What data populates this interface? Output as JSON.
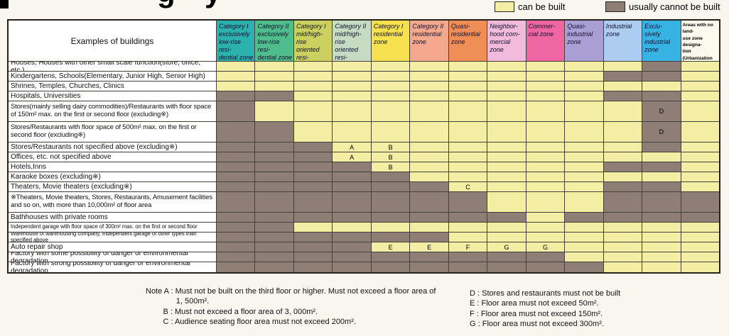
{
  "title_fragments": [
    "g",
    "y"
  ],
  "chart_data": {
    "type": "table",
    "title": "Land-use zone building restrictions matrix (title cropped in image)",
    "legend": [
      {
        "label": "can be built",
        "color": "#f3eea3"
      },
      {
        "label": "usually cannot be built",
        "color": "#8e7e75"
      }
    ],
    "corner_header": "Examples of buildings",
    "columns": [
      {
        "label": "Category I\nexclusively\nlow-rise resi-\ndential zone",
        "color": "#2bb2af"
      },
      {
        "label": "Category II\nexclusively\nlow-rise resi-\ndential zone",
        "color": "#50bd8c"
      },
      {
        "label": "Category I\nmid/high-rise\noriented resi-\ndential zone",
        "color": "#cbd05e"
      },
      {
        "label": "Category II\nmid/high-rise\noriented resi-\ndential zone",
        "color": "#c5dcc2"
      },
      {
        "label": "Category I\nresidential\nzone",
        "color": "#f8e14e"
      },
      {
        "label": "Category II\nresidential\nzone",
        "color": "#f4a98e"
      },
      {
        "label": "Quasi-\nresidential\nzone",
        "color": "#f08e57"
      },
      {
        "label": "Neighbor-\nhood com-\nmercial\nzone",
        "color": "#f2badb"
      },
      {
        "label": "Commer-\ncial zone",
        "color": "#ef66a2"
      },
      {
        "label": "Quasi-\nindustrial\nzone",
        "color": "#a99fd4"
      },
      {
        "label": "Industrial\nzone",
        "color": "#accdf0"
      },
      {
        "label": "Exclu-\nsively\nindustrial\nzone",
        "color": "#36b3e3"
      },
      {
        "label": "Areas with no land-\nuse zone designa-\ntion (Urbanization\nControl Areas are\nexcluded)",
        "color": "#fcf9ee"
      }
    ],
    "cell_legend_note": "blank = can be built, N = usually cannot be built, letters refer to notes A-G",
    "rows": [
      {
        "label": "Houses, Houses with other small scale function(store, office, etc.)",
        "cells": [
          "",
          "",
          "",
          "",
          "",
          "",
          "",
          "",
          "",
          "",
          "",
          "N",
          ""
        ]
      },
      {
        "label": "Kindergartens, Schools(Elementary, Junior High, Senior High)",
        "cells": [
          "",
          "",
          "",
          "",
          "",
          "",
          "",
          "",
          "",
          "",
          "N",
          "N",
          ""
        ]
      },
      {
        "label": "Shrines, Temples, Churches, Clinics",
        "cells": [
          "",
          "",
          "",
          "",
          "",
          "",
          "",
          "",
          "",
          "",
          "",
          "",
          ""
        ]
      },
      {
        "label": "Hospitals, Universities",
        "cells": [
          "N",
          "N",
          "",
          "",
          "",
          "",
          "",
          "",
          "",
          "",
          "N",
          "N",
          ""
        ]
      },
      {
        "label": "Stores(mainly selling dairy commodities)/Restaurants with floor space of 150m² max. on the first or second floor (excluding※)",
        "cells": [
          "N",
          "",
          "",
          "",
          "",
          "",
          "",
          "",
          "",
          "",
          "",
          "ND",
          ""
        ]
      },
      {
        "label": "Stores/Restaurants with floor space of 500m² max. on the first or second floor (excluding※)",
        "cells": [
          "N",
          "N",
          "",
          "",
          "",
          "",
          "",
          "",
          "",
          "",
          "",
          "ND",
          ""
        ]
      },
      {
        "label": "Stores/Restaurants not specified above (excluding※)",
        "cells": [
          "N",
          "N",
          "N",
          "A",
          "B",
          "",
          "",
          "",
          "",
          "",
          "",
          "N",
          ""
        ]
      },
      {
        "label": "Offices, etc. not specified above",
        "cells": [
          "N",
          "N",
          "N",
          "A",
          "B",
          "",
          "",
          "",
          "",
          "",
          "",
          "",
          ""
        ]
      },
      {
        "label": "Hotels,Inns",
        "cells": [
          "N",
          "N",
          "N",
          "N",
          "B",
          "",
          "",
          "",
          "",
          "",
          "N",
          "N",
          ""
        ]
      },
      {
        "label": "Karaoke boxes (excluding※)",
        "cells": [
          "N",
          "N",
          "N",
          "N",
          "N",
          "",
          "",
          "",
          "",
          "",
          "",
          "",
          ""
        ]
      },
      {
        "label": "Theaters, Movie theaters (excluding※)",
        "cells": [
          "N",
          "N",
          "N",
          "N",
          "N",
          "N",
          "C",
          "",
          "",
          "",
          "N",
          "N",
          ""
        ]
      },
      {
        "label": "※Theaters, Movie theaters, Stores, Restaurants, Amusement facilities and so on, with more than 10,000m² of floor area",
        "cells": [
          "N",
          "N",
          "N",
          "N",
          "N",
          "N",
          "N",
          "",
          "",
          "",
          "N",
          "N",
          "N"
        ]
      },
      {
        "label": "Bathhouses with private rooms",
        "cells": [
          "N",
          "N",
          "N",
          "N",
          "N",
          "N",
          "N",
          "N",
          "",
          "N",
          "N",
          "N",
          "N"
        ]
      },
      {
        "label": "Independent garage with floor space of 300m² max. on the first or second floor",
        "cells": [
          "N",
          "N",
          "",
          "",
          "",
          "",
          "",
          "",
          "",
          "",
          "",
          "",
          ""
        ]
      },
      {
        "label": "Warehouse of warehousing company, Independent garage of other types than specified above",
        "cells": [
          "N",
          "N",
          "N",
          "N",
          "N",
          "N",
          "",
          "",
          "",
          "",
          "",
          "",
          ""
        ]
      },
      {
        "label": "Auto repair shop",
        "cells": [
          "N",
          "N",
          "N",
          "N",
          "E",
          "E",
          "F",
          "G",
          "G",
          "",
          "",
          "",
          ""
        ]
      },
      {
        "label": "Factory with some possibility of danger or environmental degradation",
        "cells": [
          "N",
          "N",
          "N",
          "N",
          "N",
          "N",
          "N",
          "N",
          "N",
          "",
          "",
          "",
          ""
        ]
      },
      {
        "label": "Factory with strong possibility of danger or environmental degradation",
        "cells": [
          "N",
          "N",
          "N",
          "N",
          "N",
          "N",
          "N",
          "N",
          "N",
          "N",
          "",
          "",
          ""
        ]
      }
    ]
  },
  "notes": {
    "left": "Note A : Must not be built on the third floor or higher. Must not exceed a floor area of\n              1, 500m².\n        B : Must not exceed a floor area of 3, 000m².\n        C : Audience seating floor area must not exceed 200m².",
    "right": "D : Stores and restaurants must not be built\nE : Floor area must not exceed 50m².\nF : Floor area must not exceed 150m².\nG : Floor area must not exceed 300m²."
  }
}
